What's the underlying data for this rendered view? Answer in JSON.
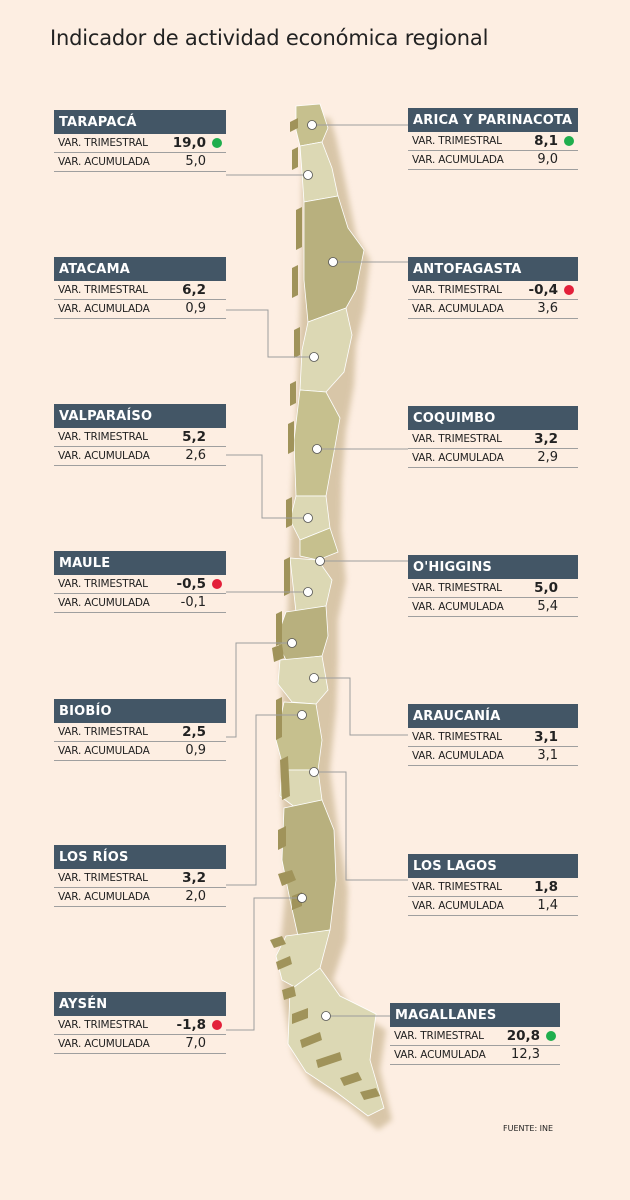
{
  "title": "Indicador de actividad económica regional",
  "source": "FUENTE: INE",
  "labels": {
    "trimestral": "VAR. TRIMESTRAL",
    "acumulada": "VAR. ACUMULADA"
  },
  "status_colors": {
    "positive": "#1fae4d",
    "negative": "#e3203a"
  },
  "regions": [
    {
      "name": "TARAPACÁ",
      "trimestral": "19,0",
      "acumulada": "5,0",
      "indicator": "positive"
    },
    {
      "name": "ARICA Y PARINACOTA",
      "trimestral": "8,1",
      "acumulada": "9,0",
      "indicator": "positive"
    },
    {
      "name": "ATACAMA",
      "trimestral": "6,2",
      "acumulada": "0,9",
      "indicator": ""
    },
    {
      "name": "ANTOFAGASTA",
      "trimestral": "-0,4",
      "acumulada": "3,6",
      "indicator": "negative"
    },
    {
      "name": "VALPARAÍSO",
      "trimestral": "5,2",
      "acumulada": "2,6",
      "indicator": ""
    },
    {
      "name": "COQUIMBO",
      "trimestral": "3,2",
      "acumulada": "2,9",
      "indicator": ""
    },
    {
      "name": "MAULE",
      "trimestral": "-0,5",
      "acumulada": "-0,1",
      "indicator": "negative"
    },
    {
      "name": "O'HIGGINS",
      "trimestral": "5,0",
      "acumulada": "5,4",
      "indicator": ""
    },
    {
      "name": "BIOBÍO",
      "trimestral": "2,5",
      "acumulada": "0,9",
      "indicator": ""
    },
    {
      "name": "ARAUCANÍA",
      "trimestral": "3,1",
      "acumulada": "3,1",
      "indicator": ""
    },
    {
      "name": "LOS RÍOS",
      "trimestral": "3,2",
      "acumulada": "2,0",
      "indicator": ""
    },
    {
      "name": "LOS LAGOS",
      "trimestral": "1,8",
      "acumulada": "1,4",
      "indicator": ""
    },
    {
      "name": "AYSÉN",
      "trimestral": "-1,8",
      "acumulada": "7,0",
      "indicator": "negative"
    },
    {
      "name": "MAGALLANES",
      "trimestral": "20,8",
      "acumulada": "12,3",
      "indicator": "positive"
    }
  ]
}
